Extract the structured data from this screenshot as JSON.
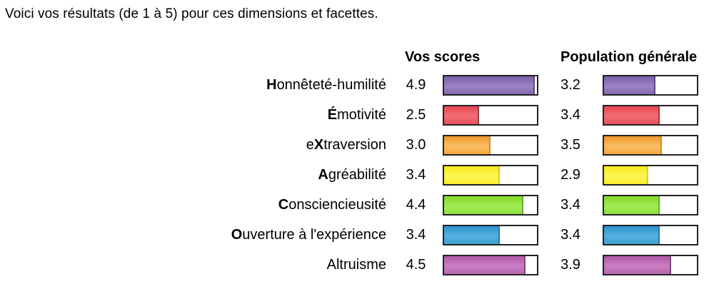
{
  "title": "Voici vos résultats (de 1 à 5) pour ces dimensions et facettes.",
  "columns": {
    "scores": "Vos scores",
    "population": "Population générale"
  },
  "scale": {
    "min": 1,
    "max": 5
  },
  "chart_data": {
    "type": "bar",
    "orientation": "horizontal",
    "title": "Voici vos résultats (de 1 à 5) pour ces dimensions et facettes.",
    "categories": [
      "Honnêteté-humilité",
      "Émotivité",
      "eXtraversion",
      "Agréabilité",
      "Consciencieusité",
      "Ouverture à l'expérience",
      "Altruisme"
    ],
    "series": [
      {
        "name": "Vos scores",
        "values": [
          4.9,
          2.5,
          3.0,
          3.4,
          4.4,
          3.4,
          4.5
        ]
      },
      {
        "name": "Population générale",
        "values": [
          3.2,
          3.4,
          3.5,
          2.9,
          3.4,
          3.4,
          3.9
        ]
      }
    ],
    "xlim": [
      1,
      5
    ],
    "grid": false,
    "legend_position": "column-headers",
    "bar_colors": [
      "#8468b0",
      "#ea4a59",
      "#f6a63c",
      "#fbee2b",
      "#8de33c",
      "#3fa2d6",
      "#bb6ab4"
    ],
    "bar_background": "#ffffff",
    "bar_border": "#232323"
  },
  "rows": [
    {
      "pre": "",
      "bold": "H",
      "rest": "onnêteté-humilité",
      "score": "4.9",
      "population": "3.2",
      "grad": [
        "#7a5ea8",
        "#9c84c4",
        "#8468b0"
      ],
      "edge": "#5f4796"
    },
    {
      "pre": "",
      "bold": "É",
      "rest": "motivité",
      "score": "2.5",
      "population": "3.4",
      "grad": [
        "#e84553",
        "#f26d74",
        "#e84f5c"
      ],
      "edge": "#c2293a"
    },
    {
      "pre": "e",
      "bold": "X",
      "rest": "traversion",
      "score": "3.0",
      "population": "3.5",
      "grad": [
        "#f0962a",
        "#fbbe66",
        "#f6a63c"
      ],
      "edge": "#da8a1a"
    },
    {
      "pre": "",
      "bold": "A",
      "rest": "gréabilité",
      "score": "3.4",
      "population": "2.9",
      "grad": [
        "#f7e71a",
        "#fdf455",
        "#fbee2b"
      ],
      "edge": "#ddcf06"
    },
    {
      "pre": "",
      "bold": "C",
      "rest": "onsciencieusité",
      "score": "4.4",
      "population": "3.4",
      "grad": [
        "#82da26",
        "#a2eb56",
        "#8de33c"
      ],
      "edge": "#5cb60e"
    },
    {
      "pre": "",
      "bold": "O",
      "rest": "uverture à l'expérience",
      "score": "3.4",
      "population": "3.4",
      "grad": [
        "#2d92cb",
        "#54b1de",
        "#3fa2d6"
      ],
      "edge": "#1d7bb0"
    },
    {
      "pre": "",
      "bold": "",
      "rest": "Altruisme",
      "score": "4.5",
      "population": "3.9",
      "grad": [
        "#ad58a5",
        "#ca7fc3",
        "#b765b0"
      ],
      "edge": "#8e3a88"
    }
  ]
}
